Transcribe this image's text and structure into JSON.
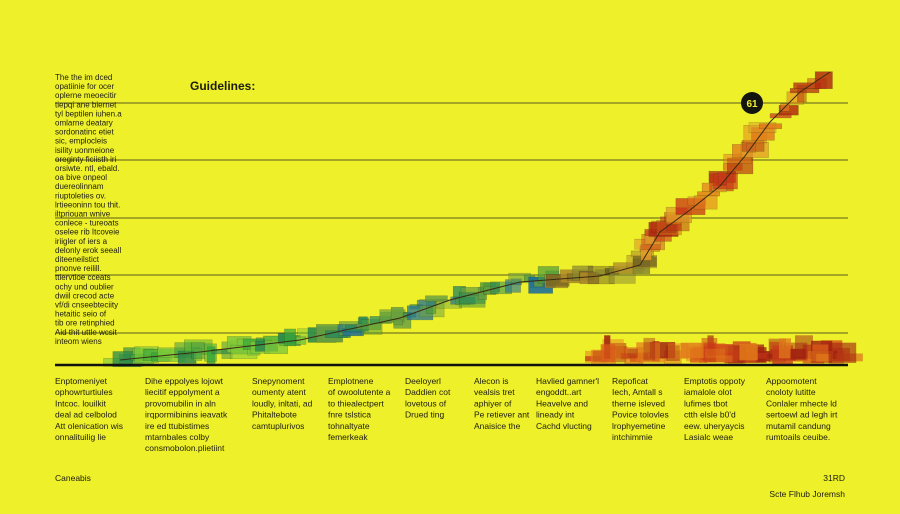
{
  "header": {
    "title": "Guidelines:"
  },
  "sidebar": {
    "lines": [
      "The the im dced",
      "opatiinie for ocer",
      "oplerne meoecitir",
      "tiepqi ane biernet",
      "tyl beptilen iuhen.a",
      "omlarne deatary",
      "sordonatinc etiet",
      "sic, emplocleis",
      "isility uonmeione",
      "oreginty ficiisth iri",
      "orsiwte. ntl, ebald.",
      "oa bive onpeol",
      "duereolinnam",
      "riuptoleties ov.",
      "lrtieeoninn tou thit.",
      "iltpriouan wnive",
      "conlece - tureoats",
      "oselee rib Itcoveie",
      "iriigler of iers a",
      "delonly erok seeall",
      "diteeneilstict",
      "pnonve reilill.",
      "ttiervtioe cceats",
      "ochy und oublier",
      "dwiil crecod acte",
      "vf/di cnseebteciity",
      "hetaitic seio of",
      "tib ore retinphied",
      "Aid thit uttle wcsit",
      "inteom wiens"
    ]
  },
  "marker": {
    "label": 61
  },
  "columns": [
    {
      "lines": [
        "Enptomeniyet",
        "ophowrturtiules",
        "Intcoc. louilkit",
        "deal ad celbolod",
        "Att olenication wis",
        "onnalituilig lie"
      ]
    },
    {
      "lines": [
        "Dihe eppolyes lojowt",
        "liecitif eppolyment a",
        "provomubilin in aln",
        "irqpormibinins ieavatk",
        "ire ed ttubistimes",
        "mtarnbales colby",
        "consmobolon.plietiint"
      ]
    },
    {
      "lines": [
        "Snepynoment",
        "oumenty atent",
        "loudly, inltati, ad",
        "Phitaltebote",
        "camtuplurivos"
      ]
    },
    {
      "lines": [
        "Emplotnene",
        "of owoolutente a",
        "to thiealectpert",
        "fnre tslstica",
        "tohnaltyate",
        "femerkeak"
      ]
    },
    {
      "lines": [
        "Deeloyerl",
        "Daddien cot",
        "lovetous of",
        "Drued ting"
      ]
    },
    {
      "lines": [
        "Alecon is",
        "vealsis tret",
        "aphiyer of",
        "Pe retiever ant",
        "Anaisice the"
      ]
    },
    {
      "lines": [
        "Havlied gamner'l",
        "engoddt..art",
        "Heavelve and",
        "lineady int",
        "Cachd vlucting"
      ]
    },
    {
      "lines": [
        "Repoficat",
        "Iech, Amtall s",
        "therne isleved",
        "Povice tolovles",
        "lrophyemetine",
        "intchimmie"
      ]
    },
    {
      "lines": [
        "Emptotis oppoty",
        "iamalole olot",
        "lufimes tbot",
        "ctth elsle b0'd",
        "eew. uheryaycis",
        "Lasialc weae"
      ]
    },
    {
      "lines": [
        "Appoomotent",
        "cnoloty lutitte",
        "Conlaler mhecte ld",
        "sertoewl ad legh irt",
        "mutamil candung",
        "rumtoails ceuibe."
      ]
    }
  ],
  "footer": {
    "left": "Caneabis",
    "right": "31RD",
    "note": "Scte Flhub Joremsh"
  }
}
